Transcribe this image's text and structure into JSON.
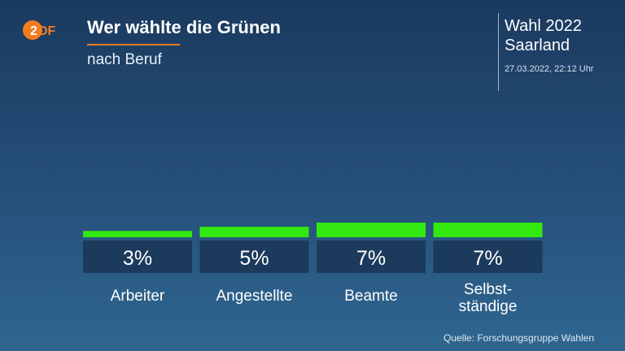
{
  "header": {
    "logo_text": "ZDF",
    "title": "Wer wählte die Grünen",
    "subtitle": "nach Beruf",
    "election_line1": "Wahl 2022",
    "election_line2": "Saarland",
    "timestamp": "27.03.2022, 22:12 Uhr"
  },
  "colors": {
    "bar": "#33e80f",
    "label_box": "#1c3a5c",
    "accent": "#f07d1e"
  },
  "chart_data": {
    "type": "bar",
    "categories": [
      [
        "Arbeiter"
      ],
      [
        "Angestellte"
      ],
      [
        "Beamte"
      ],
      [
        "Selbst-",
        "ständige"
      ]
    ],
    "values": [
      3,
      5,
      7,
      7
    ],
    "value_labels": [
      "3%",
      "5%",
      "7%",
      "7%"
    ],
    "unit": "%",
    "title": "Wer wählte die Grünen",
    "subtitle": "nach Beruf",
    "ylim": [
      0,
      7
    ],
    "grid": false,
    "legend": "none"
  },
  "footer": {
    "source": "Quelle: Forschungsgruppe Wahlen"
  }
}
